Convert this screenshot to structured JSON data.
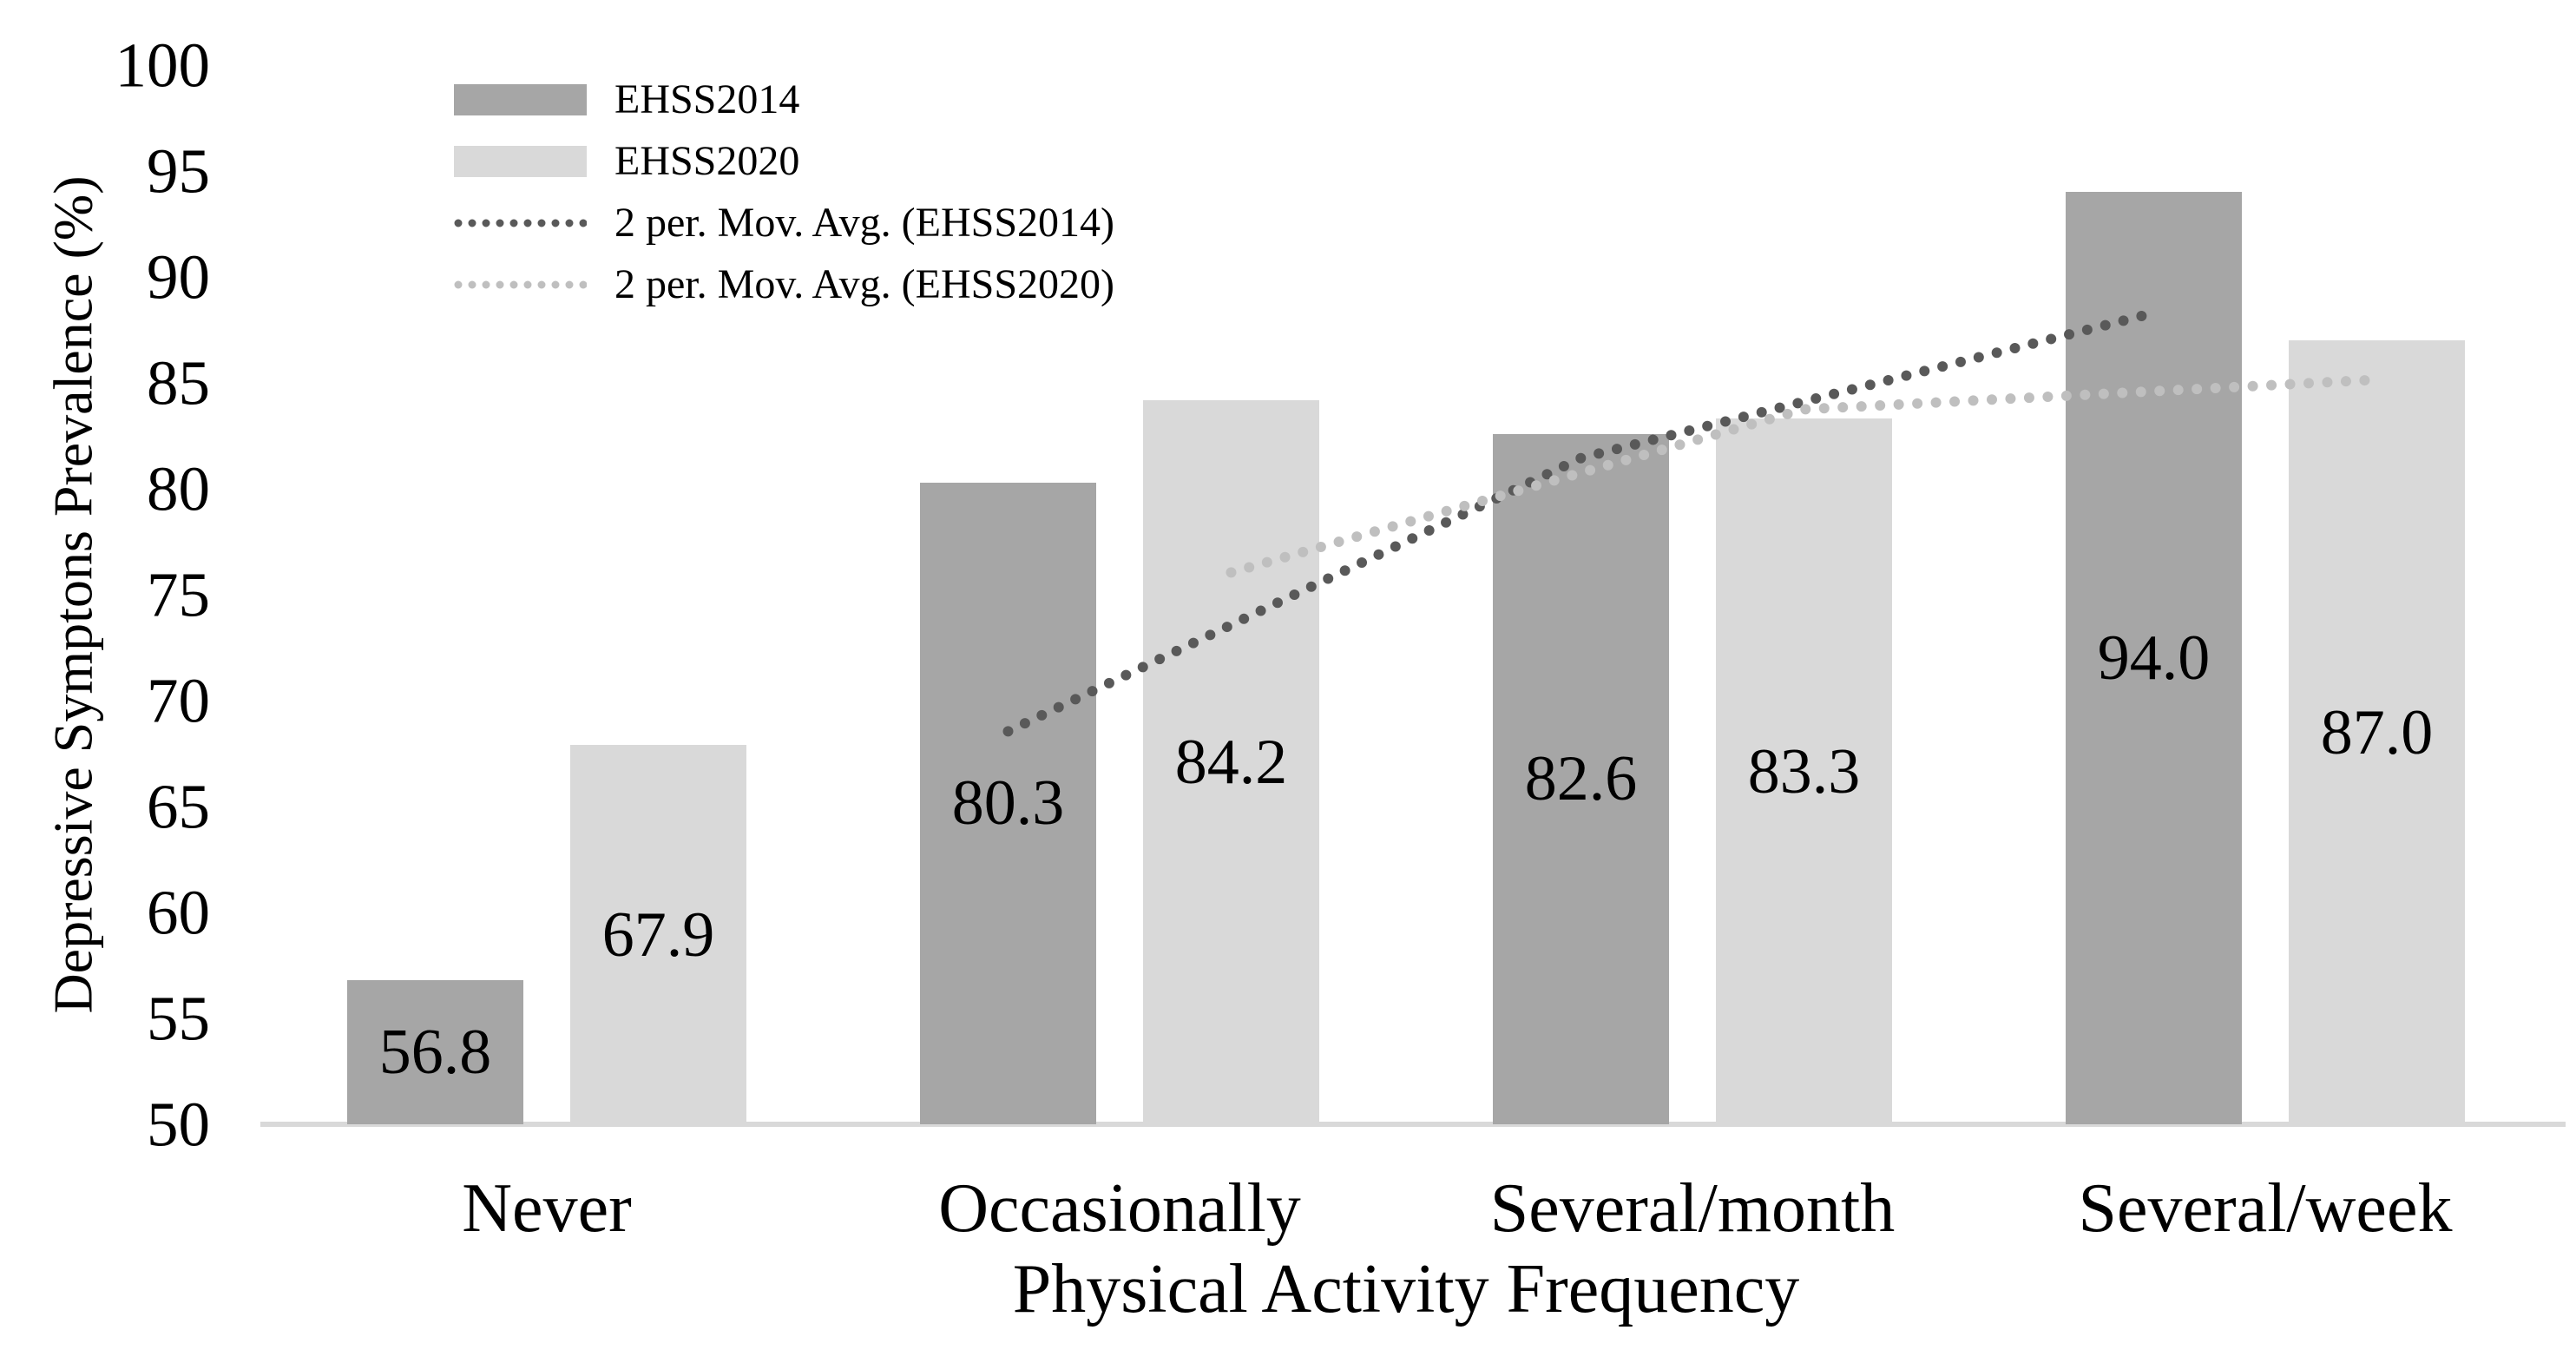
{
  "figure": {
    "background": "#ffffff"
  },
  "chart_data": {
    "type": "bar",
    "title": "",
    "categories": [
      "Never",
      "Occasionally",
      "Several/month",
      "Several/week"
    ],
    "series": [
      {
        "name": "EHSS2014",
        "color": "#a6a6a6",
        "values": [
          56.8,
          80.3,
          82.6,
          94.0
        ],
        "labels": [
          "56.8",
          "80.3",
          "82.6",
          "94.0"
        ]
      },
      {
        "name": "EHSS2020",
        "color": "#d9d9d9",
        "values": [
          67.9,
          84.2,
          83.3,
          87.0
        ],
        "labels": [
          "67.9",
          "84.2",
          "83.3",
          "87.0"
        ]
      }
    ],
    "trendlines": [
      {
        "label": "2 per. Mov. Avg. (EHSS2014)",
        "series_index": 0,
        "color": "#595959",
        "values": [
          null,
          68.55,
          81.45,
          88.3
        ]
      },
      {
        "label": "2 per. Mov. Avg. (EHSS2020)",
        "series_index": 1,
        "color": "#bfbfbf",
        "values": [
          null,
          76.05,
          83.75,
          85.15
        ]
      }
    ],
    "xlabel": "Physical Activity Frequency",
    "ylabel": "Depressive Symptons Prevalence (%)",
    "ylim": [
      50,
      100
    ],
    "yticks": [
      50,
      55,
      60,
      65,
      70,
      75,
      80,
      85,
      90,
      95,
      100
    ],
    "grid": false,
    "legend_position": "top-left",
    "bar_label_position": "center",
    "axis_line_color": "#d9d9d9",
    "text_color": "#000000"
  }
}
